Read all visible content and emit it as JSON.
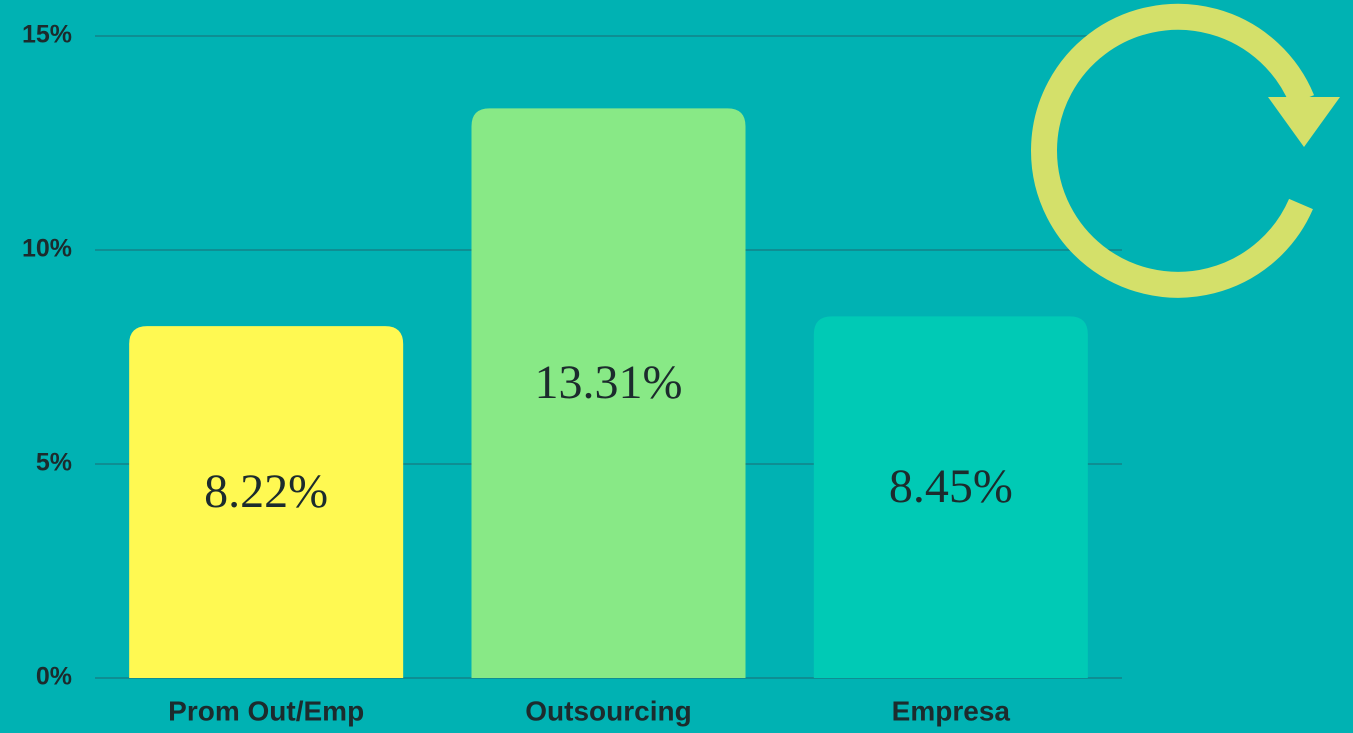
{
  "chart_data": {
    "type": "bar",
    "categories": [
      "Prom Out/Emp",
      "Outsourcing",
      "Empresa"
    ],
    "values": [
      8.22,
      13.31,
      8.45
    ],
    "value_labels": [
      "8.22%",
      "13.31%",
      "8.45%"
    ],
    "colors": [
      "#fff952",
      "#88e986",
      "#00cab5"
    ],
    "ylim": [
      0,
      15
    ],
    "yticks": [
      {
        "value": 0,
        "label": "0%"
      },
      {
        "value": 5,
        "label": "5%"
      },
      {
        "value": 10,
        "label": "10%"
      },
      {
        "value": 15,
        "label": "15%"
      }
    ],
    "grid": true
  }
}
